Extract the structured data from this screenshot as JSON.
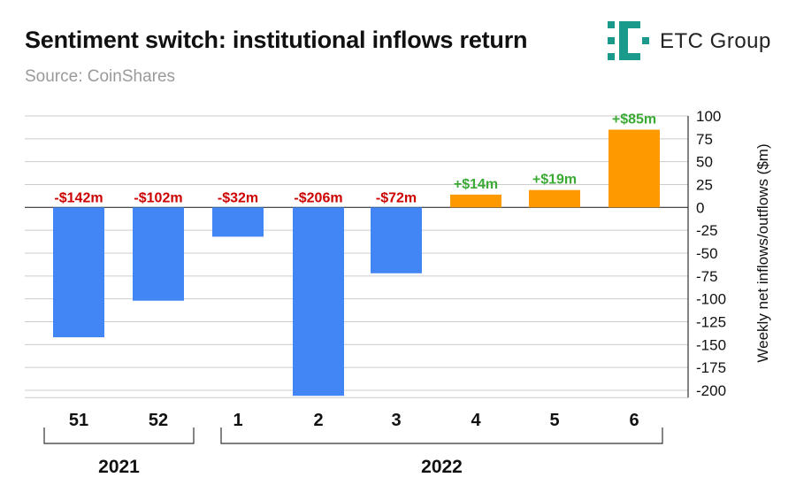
{
  "header": {
    "title": "Sentiment switch: institutional inflows return",
    "source": "Source: CoinShares",
    "brand": "ETC Group"
  },
  "colors": {
    "outflow": "#4285f4",
    "inflow": "#ff9900",
    "neg_label": "#cc0000",
    "pos_label": "#3aaa35",
    "grid": "#cccccc",
    "axis": "#333333"
  },
  "chart_data": {
    "type": "bar",
    "title": "Sentiment switch: institutional inflows return",
    "xlabel": "",
    "ylabel": "Weekly net inflows/outflows ($m)",
    "ylim": [
      -200,
      100
    ],
    "yticks": [
      100,
      75,
      50,
      25,
      0,
      -25,
      -50,
      -75,
      -100,
      -125,
      -150,
      -175,
      -200
    ],
    "categories": [
      "51",
      "52",
      "1",
      "2",
      "3",
      "4",
      "5",
      "6"
    ],
    "values": [
      -142,
      -102,
      -32,
      -206,
      -72,
      14,
      19,
      85
    ],
    "data_labels": [
      "-$142m",
      "-$102m",
      "-$32m",
      "-$206m",
      "-$72m",
      "+$14m",
      "+$19m",
      "+$85m"
    ],
    "groups": [
      {
        "label": "2021",
        "from": 0,
        "to": 1
      },
      {
        "label": "2022",
        "from": 2,
        "to": 7
      }
    ],
    "grid": true
  }
}
